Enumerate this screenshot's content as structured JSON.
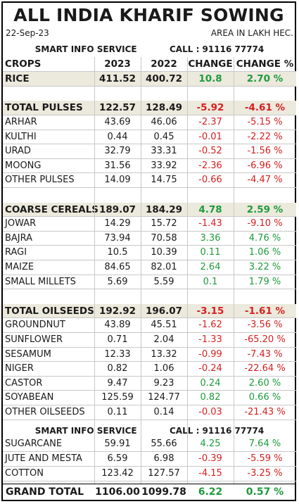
{
  "title": "ALL INDIA KHARIF SOWING",
  "date": "22-Sep-23",
  "unit_note": "AREA IN LAKH HEC.",
  "info_service": "SMART INFO SERVICE",
  "info_call": "CALL : 91116 77774",
  "columns": [
    "CROPS",
    "2023",
    "2022",
    "CHANGE",
    "CHANGE %"
  ],
  "rows": [
    {
      "crop": "RICE",
      "y2023": "411.52",
      "y2022": "400.72",
      "change": "10.8",
      "change_pct": "2.70 %"
    },
    {
      "crop": "TOTAL PULSES",
      "y2023": "122.57",
      "y2022": "128.49",
      "change": "-5.92",
      "change_pct": "-4.61 %"
    },
    {
      "crop": "ARHAR",
      "y2023": "43.69",
      "y2022": "46.06",
      "change": "-2.37",
      "change_pct": "-5.15 %"
    },
    {
      "crop": "KULTHI",
      "y2023": "0.44",
      "y2022": "0.45",
      "change": "-0.01",
      "change_pct": "-2.22 %"
    },
    {
      "crop": "URAD",
      "y2023": "32.79",
      "y2022": "33.31",
      "change": "-0.52",
      "change_pct": "-1.56 %"
    },
    {
      "crop": "MOONG",
      "y2023": "31.56",
      "y2022": "33.92",
      "change": "-2.36",
      "change_pct": "-6.96 %"
    },
    {
      "crop": "OTHER PULSES",
      "y2023": "14.09",
      "y2022": "14.75",
      "change": "-0.66",
      "change_pct": "-4.47 %"
    },
    {
      "crop": "COARSE CEREALS",
      "y2023": "189.07",
      "y2022": "184.29",
      "change": "4.78",
      "change_pct": "2.59 %"
    },
    {
      "crop": "JOWAR",
      "y2023": "14.29",
      "y2022": "15.72",
      "change": "-1.43",
      "change_pct": "-9.10 %"
    },
    {
      "crop": "BAJRA",
      "y2023": "73.94",
      "y2022": "70.58",
      "change": "3.36",
      "change_pct": "4.76 %"
    },
    {
      "crop": "RAGI",
      "y2023": "10.5",
      "y2022": "10.39",
      "change": "0.11",
      "change_pct": "1.06 %"
    },
    {
      "crop": "MAIZE",
      "y2023": "84.65",
      "y2022": "82.01",
      "change": "2.64",
      "change_pct": "3.22 %"
    },
    {
      "crop": "SMALL MILLETS",
      "y2023": "5.69",
      "y2022": "5.59",
      "change": "0.1",
      "change_pct": "1.79 %"
    },
    {
      "crop": "TOTAL OILSEEDS",
      "y2023": "192.92",
      "y2022": "196.07",
      "change": "-3.15",
      "change_pct": "-1.61 %"
    },
    {
      "crop": "GROUNDNUT",
      "y2023": "43.89",
      "y2022": "45.51",
      "change": "-1.62",
      "change_pct": "-3.56 %"
    },
    {
      "crop": "SUNFLOWER",
      "y2023": "0.71",
      "y2022": "2.04",
      "change": "-1.33",
      "change_pct": "-65.20 %"
    },
    {
      "crop": "SESAMUM",
      "y2023": "12.33",
      "y2022": "13.32",
      "change": "-0.99",
      "change_pct": "-7.43 %"
    },
    {
      "crop": "NIGER",
      "y2023": "0.82",
      "y2022": "1.06",
      "change": "-0.24",
      "change_pct": "-22.64 %"
    },
    {
      "crop": "CASTOR",
      "y2023": "9.47",
      "y2022": "9.23",
      "change": "0.24",
      "change_pct": "2.60 %"
    },
    {
      "crop": "SOYABEAN",
      "y2023": "125.59",
      "y2022": "124.77",
      "change": "0.82",
      "change_pct": "0.66 %"
    },
    {
      "crop": "OTHER OILSEEDS",
      "y2023": "0.11",
      "y2022": "0.14",
      "change": "-0.03",
      "change_pct": "-21.43 %"
    },
    {
      "crop": "SUGARCANE",
      "y2023": "59.91",
      "y2022": "55.66",
      "change": "4.25",
      "change_pct": "7.64 %"
    },
    {
      "crop": "JUTE AND MESTA",
      "y2023": "6.59",
      "y2022": "6.98",
      "change": "-0.39",
      "change_pct": "-5.59 %"
    },
    {
      "crop": "COTTON",
      "y2023": "123.42",
      "y2022": "127.57",
      "change": "-4.15",
      "change_pct": "-3.25 %"
    }
  ],
  "grand_total": {
    "label": "GRAND TOTAL",
    "y2023": "1106.00",
    "y2022": "1099.78",
    "change": "6.22",
    "change_pct": "0.57 %"
  },
  "colors": {
    "positive": "#1e9b3c",
    "negative": "#d62020",
    "highlight_row": "#ece9dd"
  }
}
